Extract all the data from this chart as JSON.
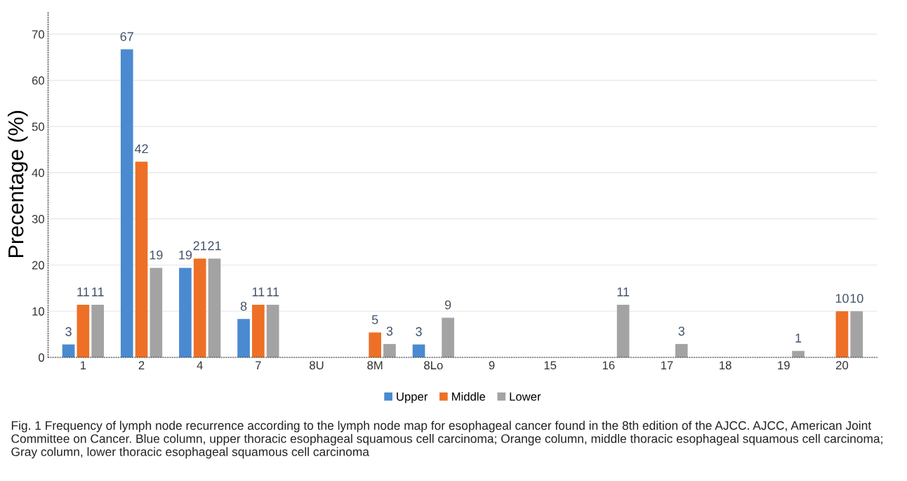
{
  "chart_data": {
    "type": "bar",
    "categories": [
      "1",
      "2",
      "4",
      "7",
      "8U",
      "8M",
      "8Lo",
      "9",
      "15",
      "16",
      "17",
      "18",
      "19",
      "20"
    ],
    "series": [
      {
        "name": "Upper",
        "color": "#4a8ad0",
        "values": [
          2.8,
          66.7,
          19.4,
          8.3,
          null,
          null,
          2.8,
          null,
          null,
          null,
          null,
          null,
          null,
          null
        ],
        "value_labels": [
          "3",
          "67",
          "19",
          "8",
          null,
          null,
          "3",
          null,
          null,
          null,
          null,
          null,
          null,
          null
        ]
      },
      {
        "name": "Middle",
        "color": "#ed7026",
        "values": [
          11.4,
          42.4,
          21.4,
          11.4,
          null,
          5.4,
          null,
          null,
          null,
          null,
          null,
          null,
          null,
          10
        ],
        "value_labels": [
          "11",
          "42",
          "21",
          "11",
          null,
          "5",
          null,
          null,
          null,
          null,
          null,
          null,
          null,
          "10"
        ]
      },
      {
        "name": "Lower",
        "color": "#a3a3a3",
        "values": [
          11.4,
          19.4,
          21.4,
          11.4,
          null,
          2.9,
          8.6,
          null,
          null,
          11.4,
          2.9,
          null,
          1.4,
          10
        ],
        "value_labels": [
          "11",
          "19",
          "21",
          "11",
          null,
          "3",
          "9",
          null,
          null,
          "11",
          "3",
          null,
          "1",
          "10"
        ]
      }
    ],
    "ylabel": "Precentage (%)",
    "ylim": [
      0,
      75
    ],
    "yticks": [
      0,
      10,
      20,
      30,
      40,
      50,
      60,
      70
    ],
    "grid": "y",
    "legend": "bottom",
    "annotations": [
      "Fig. 1 Frequency of lymph node recurrence according to the lymph node map for esophageal cancer found in the 8th edition of the AJCC. AJCC, American Joint Committee on Cancer. Blue column, upper thoracic esophageal squamous cell carcinoma; Orange column, middle thoracic esophageal squamous cell carcinoma; Gray column, lower thoracic esophageal squamous cell carcinoma"
    ]
  }
}
